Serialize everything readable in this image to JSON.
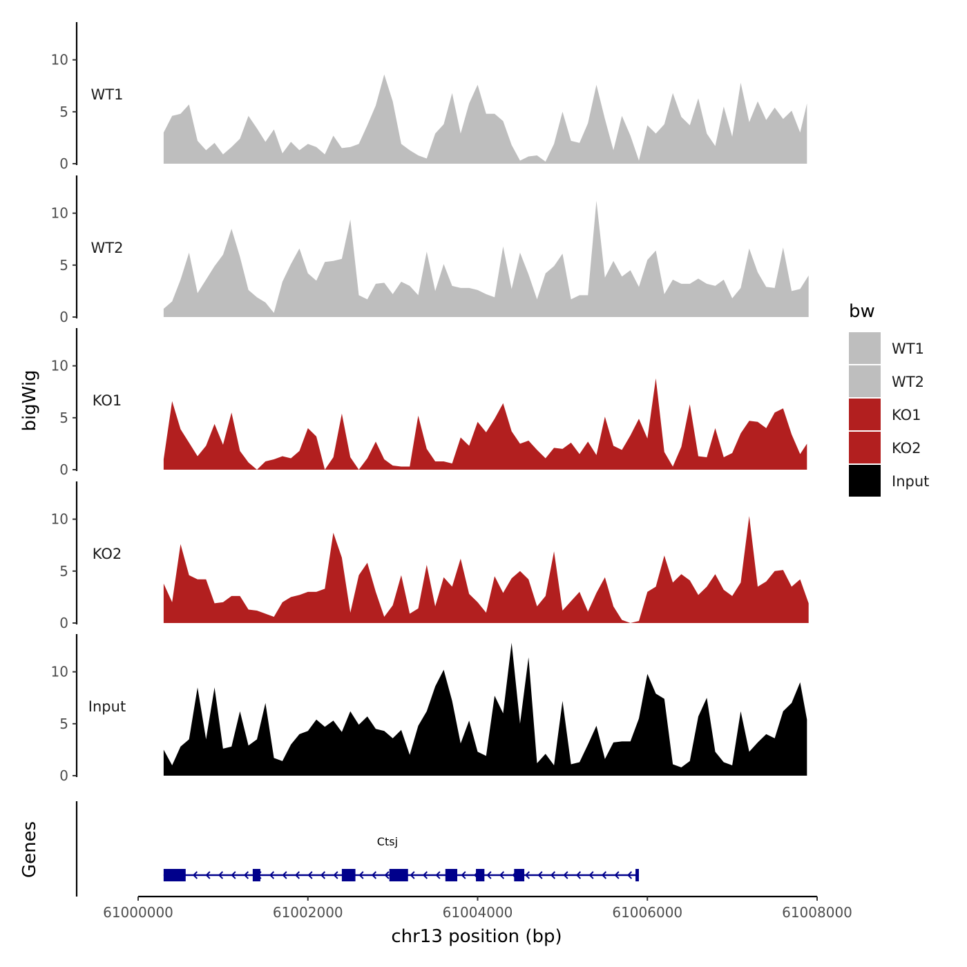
{
  "chart_data": {
    "type": "area",
    "title": "",
    "ylabel": "bigWig",
    "xlabel": "chr13 position (bp)",
    "xlim": [
      61000000,
      61008000
    ],
    "x_ticks": [
      61000000,
      61002000,
      61004000,
      61006000,
      61008000
    ],
    "x_tick_labels": [
      "61000000",
      "61002000",
      "61004000",
      "61006000",
      "61008000"
    ],
    "ylim": [
      0,
      13.5
    ],
    "y_ticks": [
      0,
      5,
      10
    ],
    "y_tick_labels": [
      "0",
      "5",
      "10"
    ],
    "series": [
      {
        "name": "WT1",
        "color": "#bebebe",
        "x": [
          61000300,
          61000400,
          61000500,
          61000600,
          61000700,
          61000800,
          61000900,
          61001000,
          61001100,
          61001200,
          61001300,
          61001400,
          61001500,
          61001600,
          61001700,
          61001800,
          61001900,
          61002000,
          61002100,
          61002200,
          61002300,
          61002400,
          61002500,
          61002600,
          61002700,
          61002800,
          61002900,
          61003000,
          61003100,
          61003200,
          61003300,
          61003400,
          61003500,
          61003600,
          61003700,
          61003800,
          61003900,
          61004000,
          61004100,
          61004200,
          61004300,
          61004400,
          61004500,
          61004600,
          61004700,
          61004800,
          61004900,
          61005000,
          61005100,
          61005200,
          61005300,
          61005400,
          61005500,
          61005600,
          61005700,
          61005800,
          61005900,
          61006000,
          61006100,
          61006200,
          61006300,
          61006400,
          61006500,
          61006600,
          61006700,
          61006800,
          61006900,
          61007000,
          61007100,
          61007200,
          61007300,
          61007400,
          61007500,
          61007600,
          61007700,
          61007800,
          61007880
        ],
        "values": [
          3.0,
          4.6,
          4.8,
          5.7,
          2.2,
          1.3,
          2.0,
          0.9,
          1.6,
          2.4,
          4.6,
          3.4,
          2.1,
          3.3,
          1.0,
          2.1,
          1.3,
          1.9,
          1.6,
          0.9,
          2.7,
          1.5,
          1.6,
          1.9,
          3.7,
          5.6,
          8.6,
          6.0,
          1.9,
          1.3,
          0.8,
          0.5,
          2.9,
          3.8,
          6.8,
          2.9,
          5.8,
          7.6,
          4.8,
          4.8,
          4.1,
          1.8,
          0.3,
          0.7,
          0.8,
          0.2,
          1.9,
          5.0,
          2.2,
          2.0,
          3.9,
          7.6,
          4.3,
          1.3,
          4.6,
          2.7,
          0.3,
          3.7,
          2.9,
          3.8,
          6.8,
          4.5,
          3.7,
          6.3,
          2.9,
          1.7,
          5.5,
          2.6,
          7.8,
          4.0,
          6.0,
          4.2,
          5.4,
          4.3,
          5.1,
          3.0,
          5.8
        ]
      },
      {
        "name": "WT2",
        "color": "#bebebe",
        "x": [
          61000300,
          61000400,
          61000500,
          61000600,
          61000700,
          61000800,
          61000900,
          61001000,
          61001100,
          61001200,
          61001300,
          61001400,
          61001500,
          61001600,
          61001700,
          61001800,
          61001900,
          61002000,
          61002100,
          61002200,
          61002300,
          61002400,
          61002500,
          61002600,
          61002700,
          61002800,
          61002900,
          61003000,
          61003100,
          61003200,
          61003300,
          61003400,
          61003500,
          61003600,
          61003700,
          61003800,
          61003900,
          61004000,
          61004100,
          61004200,
          61004300,
          61004400,
          61004500,
          61004600,
          61004700,
          61004800,
          61004900,
          61005000,
          61005100,
          61005200,
          61005300,
          61005400,
          61005500,
          61005600,
          61005700,
          61005800,
          61005900,
          61006000,
          61006100,
          61006200,
          61006300,
          61006400,
          61006500,
          61006600,
          61006700,
          61006800,
          61006900,
          61007000,
          61007100,
          61007200,
          61007300,
          61007400,
          61007500,
          61007600,
          61007700,
          61007800,
          61007900
        ],
        "values": [
          0.8,
          1.5,
          3.6,
          6.2,
          2.3,
          3.6,
          4.9,
          6.0,
          8.5,
          5.8,
          2.6,
          1.9,
          1.4,
          0.4,
          3.4,
          5.1,
          6.6,
          4.2,
          3.5,
          5.3,
          5.4,
          5.6,
          9.4,
          2.1,
          1.7,
          3.2,
          3.3,
          2.2,
          3.4,
          3.0,
          2.1,
          6.3,
          2.5,
          5.1,
          3.0,
          2.8,
          2.8,
          2.6,
          2.2,
          1.9,
          6.8,
          2.7,
          6.2,
          4.1,
          1.7,
          4.2,
          4.9,
          6.1,
          1.7,
          2.1,
          2.1,
          11.2,
          3.8,
          5.4,
          3.9,
          4.5,
          2.9,
          5.5,
          6.4,
          2.2,
          3.6,
          3.2,
          3.2,
          3.7,
          3.2,
          3.0,
          3.6,
          1.8,
          2.8,
          6.6,
          4.3,
          2.9,
          2.8,
          6.7,
          2.5,
          2.7,
          4.0
        ]
      },
      {
        "name": "KO1",
        "color": "#b21f1f",
        "x": [
          61000300,
          61000400,
          61000500,
          61000600,
          61000700,
          61000800,
          61000900,
          61001000,
          61001100,
          61001200,
          61001300,
          61001400,
          61001500,
          61001600,
          61001700,
          61001800,
          61001900,
          61002000,
          61002100,
          61002200,
          61002300,
          61002400,
          61002500,
          61002600,
          61002700,
          61002800,
          61002900,
          61003000,
          61003100,
          61003200,
          61003300,
          61003400,
          61003500,
          61003600,
          61003700,
          61003800,
          61003900,
          61004000,
          61004100,
          61004200,
          61004300,
          61004400,
          61004500,
          61004600,
          61004700,
          61004800,
          61004900,
          61005000,
          61005100,
          61005200,
          61005300,
          61005400,
          61005500,
          61005600,
          61005700,
          61005800,
          61005900,
          61006000,
          61006100,
          61006200,
          61006300,
          61006400,
          61006500,
          61006600,
          61006700,
          61006800,
          61006900,
          61007000,
          61007100,
          61007200,
          61007300,
          61007400,
          61007500,
          61007600,
          61007700,
          61007800,
          61007880
        ],
        "values": [
          1.0,
          6.6,
          3.9,
          2.6,
          1.3,
          2.3,
          4.4,
          2.4,
          5.5,
          1.8,
          0.7,
          0.0,
          0.8,
          1.0,
          1.3,
          1.1,
          1.8,
          4.0,
          3.2,
          0.0,
          1.2,
          5.4,
          1.2,
          0.0,
          1.1,
          2.7,
          1.0,
          0.4,
          0.3,
          0.3,
          5.2,
          2.0,
          0.8,
          0.8,
          0.6,
          3.1,
          2.3,
          4.6,
          3.6,
          4.9,
          6.4,
          3.7,
          2.5,
          2.8,
          1.9,
          1.1,
          2.1,
          2.0,
          2.6,
          1.5,
          2.7,
          1.4,
          5.1,
          2.3,
          1.9,
          3.3,
          4.9,
          3.0,
          8.8,
          1.7,
          0.3,
          2.2,
          6.3,
          1.3,
          1.2,
          4.0,
          1.2,
          1.6,
          3.5,
          4.7,
          4.6,
          4.0,
          5.5,
          5.9,
          3.4,
          1.5,
          2.5
        ]
      },
      {
        "name": "KO2",
        "color": "#b21f1f",
        "x": [
          61000300,
          61000400,
          61000500,
          61000600,
          61000700,
          61000800,
          61000900,
          61001000,
          61001100,
          61001200,
          61001300,
          61001400,
          61001500,
          61001600,
          61001700,
          61001800,
          61001900,
          61002000,
          61002100,
          61002200,
          61002300,
          61002400,
          61002500,
          61002600,
          61002700,
          61002800,
          61002900,
          61003000,
          61003100,
          61003200,
          61003300,
          61003400,
          61003500,
          61003600,
          61003700,
          61003800,
          61003900,
          61004000,
          61004100,
          61004200,
          61004300,
          61004400,
          61004500,
          61004600,
          61004700,
          61004800,
          61004900,
          61005000,
          61005100,
          61005200,
          61005300,
          61005400,
          61005500,
          61005600,
          61005700,
          61005800,
          61005900,
          61006000,
          61006100,
          61006200,
          61006300,
          61006400,
          61006500,
          61006600,
          61006700,
          61006800,
          61006900,
          61007000,
          61007100,
          61007200,
          61007300,
          61007400,
          61007500,
          61007600,
          61007700,
          61007800,
          61007900
        ],
        "values": [
          3.8,
          2.0,
          7.6,
          4.6,
          4.2,
          4.2,
          1.9,
          2.0,
          2.6,
          2.6,
          1.3,
          1.2,
          0.9,
          0.6,
          2.0,
          2.5,
          2.7,
          3.0,
          3.0,
          3.3,
          8.7,
          6.3,
          1.0,
          4.6,
          5.8,
          3.0,
          0.6,
          1.7,
          4.6,
          0.9,
          1.4,
          5.6,
          1.6,
          4.4,
          3.5,
          6.2,
          2.8,
          2.0,
          1.0,
          4.5,
          2.9,
          4.3,
          5.0,
          4.2,
          1.6,
          2.6,
          6.9,
          1.2,
          2.1,
          3.0,
          1.1,
          2.9,
          4.4,
          1.6,
          0.3,
          0.0,
          0.2,
          3.0,
          3.5,
          6.5,
          3.9,
          4.7,
          4.1,
          2.7,
          3.5,
          4.7,
          3.2,
          2.6,
          3.9,
          10.3,
          3.5,
          4.0,
          5.0,
          5.1,
          3.5,
          4.2,
          1.9
        ]
      },
      {
        "name": "Input",
        "color": "#000000",
        "x": [
          61000300,
          61000400,
          61000500,
          61000600,
          61000700,
          61000800,
          61000900,
          61001000,
          61001100,
          61001200,
          61001300,
          61001400,
          61001500,
          61001600,
          61001700,
          61001800,
          61001900,
          61002000,
          61002100,
          61002200,
          61002300,
          61002400,
          61002500,
          61002600,
          61002700,
          61002800,
          61002900,
          61003000,
          61003100,
          61003200,
          61003300,
          61003400,
          61003500,
          61003600,
          61003700,
          61003800,
          61003900,
          61004000,
          61004100,
          61004200,
          61004300,
          61004400,
          61004500,
          61004600,
          61004700,
          61004800,
          61004900,
          61005000,
          61005100,
          61005200,
          61005300,
          61005400,
          61005500,
          61005600,
          61005700,
          61005800,
          61005900,
          61006000,
          61006100,
          61006200,
          61006300,
          61006400,
          61006500,
          61006600,
          61006700,
          61006800,
          61006900,
          61007000,
          61007100,
          61007200,
          61007300,
          61007400,
          61007500,
          61007600,
          61007700,
          61007800,
          61007880
        ],
        "values": [
          2.5,
          1.0,
          2.8,
          3.5,
          8.5,
          3.5,
          8.5,
          2.6,
          2.8,
          6.2,
          2.9,
          3.5,
          7.0,
          1.7,
          1.4,
          3.0,
          4.0,
          4.3,
          5.4,
          4.7,
          5.3,
          4.2,
          6.2,
          4.9,
          5.7,
          4.5,
          4.3,
          3.6,
          4.4,
          2.0,
          4.8,
          6.2,
          8.6,
          10.2,
          7.2,
          3.1,
          5.3,
          2.3,
          1.9,
          7.7,
          6.0,
          12.8,
          5.0,
          11.4,
          1.2,
          2.1,
          1.0,
          7.2,
          1.1,
          1.3,
          3.0,
          4.8,
          1.6,
          3.2,
          3.3,
          3.3,
          5.5,
          9.8,
          7.9,
          7.4,
          1.1,
          0.8,
          1.4,
          5.7,
          7.5,
          2.3,
          1.3,
          1.0,
          6.2,
          2.3,
          3.2,
          4.0,
          3.6,
          6.2,
          7.0,
          9.0,
          5.4
        ]
      }
    ],
    "legend": {
      "title": "bw",
      "position": "right",
      "entries": [
        {
          "label": "WT1",
          "color": "#bebebe"
        },
        {
          "label": "WT2",
          "color": "#bebebe"
        },
        {
          "label": "KO1",
          "color": "#b21f1f"
        },
        {
          "label": "KO2",
          "color": "#b21f1f"
        },
        {
          "label": "Input",
          "color": "#000000"
        }
      ]
    },
    "genes_track": {
      "title": "Genes",
      "color": "#00008b",
      "genes": [
        {
          "name": "Ctsj",
          "start": 61000300,
          "end": 61005900,
          "strand": "-",
          "exons": [
            [
              61000300,
              61000560
            ],
            [
              61001350,
              61001440
            ],
            [
              61002400,
              61002560
            ],
            [
              61002960,
              61003180
            ],
            [
              61003620,
              61003760
            ],
            [
              61003980,
              61004080
            ],
            [
              61004430,
              61004550
            ],
            [
              61005860,
              61005900
            ]
          ]
        }
      ]
    }
  }
}
